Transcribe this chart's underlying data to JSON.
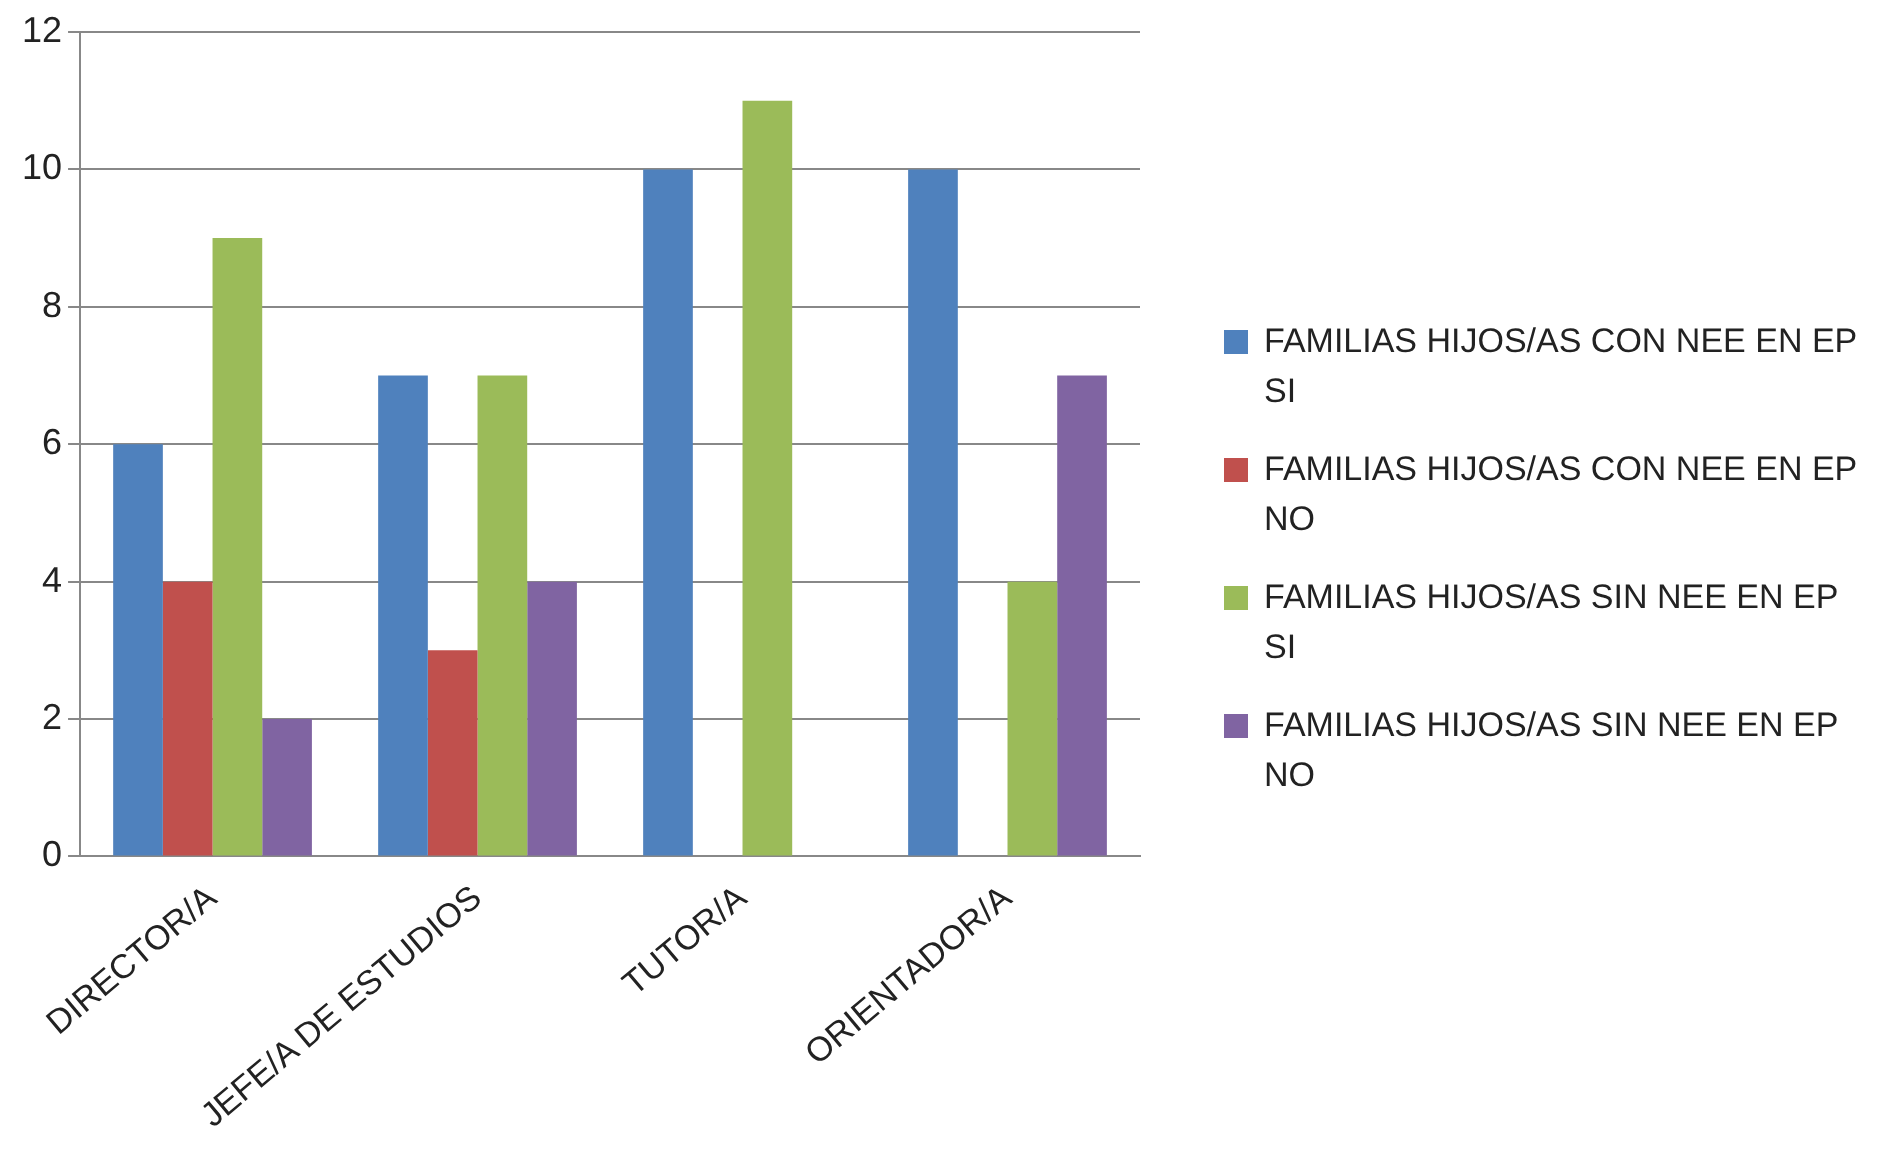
{
  "chart_data": {
    "type": "bar",
    "categories": [
      "DIRECTOR/A",
      "JEFE/A DE ESTUDIOS",
      "TUTOR/A",
      "ORIENTADOR/A"
    ],
    "series": [
      {
        "name": "FAMILIAS HIJOS/AS CON NEE EN EP SI",
        "color": "#4f81bd",
        "values": [
          6,
          7,
          10,
          10
        ]
      },
      {
        "name": "FAMILIAS HIJOS/AS CON NEE EN EP NO",
        "color": "#c0504d",
        "values": [
          4,
          3,
          0,
          0
        ]
      },
      {
        "name": "FAMILIAS HIJOS/AS SIN NEE EN EP SI",
        "color": "#9bbb59",
        "values": [
          9,
          7,
          11,
          4
        ]
      },
      {
        "name": "FAMILIAS HIJOS/AS SIN NEE EN EP NO",
        "color": "#8064a2",
        "values": [
          2,
          4,
          0,
          7
        ]
      }
    ],
    "ylim": [
      0,
      12
    ],
    "yticks": [
      0,
      2,
      4,
      6,
      8,
      10,
      12
    ],
    "grid": "y",
    "legend": "right"
  }
}
